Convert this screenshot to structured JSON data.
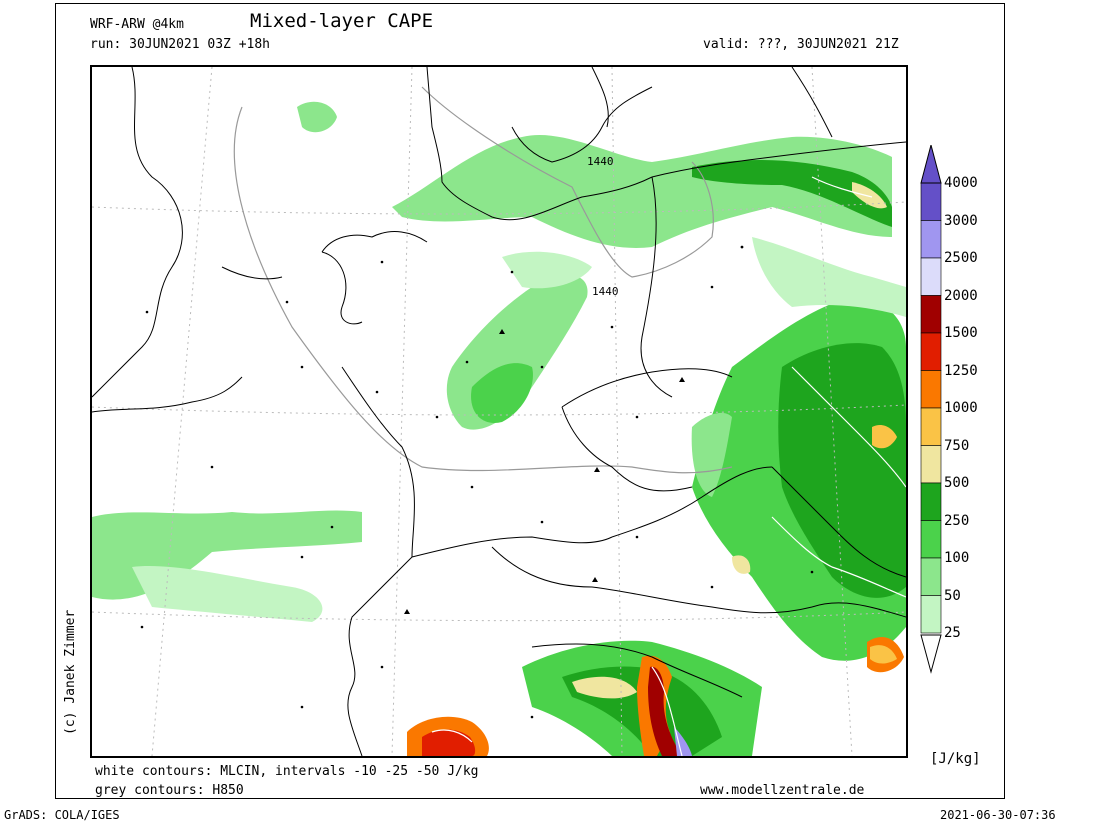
{
  "header": {
    "model": "WRF-ARW @4km",
    "title": "Mixed-layer CAPE",
    "run": "run: 30JUN2021 03Z +18h",
    "valid": "valid: ???, 30JUN2021 21Z"
  },
  "footer": {
    "white_contours": "white contours: MLCIN, intervals -10 -25 -50 J/kg",
    "grey_contours": "grey contours: H850",
    "website": "www.modellzentrale.de",
    "grads": "GrADS: COLA/IGES",
    "timestamp": "2021-06-30-07:36",
    "copyright": "(c) Janek Zimmer"
  },
  "map": {
    "contour_labels": [
      "1440",
      "1440"
    ]
  },
  "legend": {
    "unit": "[J/kg]",
    "levels": [
      {
        "label": "25",
        "color": "#e6ffe6"
      },
      {
        "label": "50",
        "color": "#c3f5c3"
      },
      {
        "label": "100",
        "color": "#8ce68c"
      },
      {
        "label": "250",
        "color": "#4bd24b"
      },
      {
        "label": "500",
        "color": "#1ea51e"
      },
      {
        "label": "750",
        "color": "#f0e6a0"
      },
      {
        "label": "1000",
        "color": "#fac346"
      },
      {
        "label": "1250",
        "color": "#fa7800"
      },
      {
        "label": "1500",
        "color": "#e11e00"
      },
      {
        "label": "2000",
        "color": "#a00000"
      },
      {
        "label": "2500",
        "color": "#dcdcfa"
      },
      {
        "label": "3000",
        "color": "#a096f0"
      },
      {
        "label": "4000",
        "color": "#6450c8"
      }
    ]
  }
}
